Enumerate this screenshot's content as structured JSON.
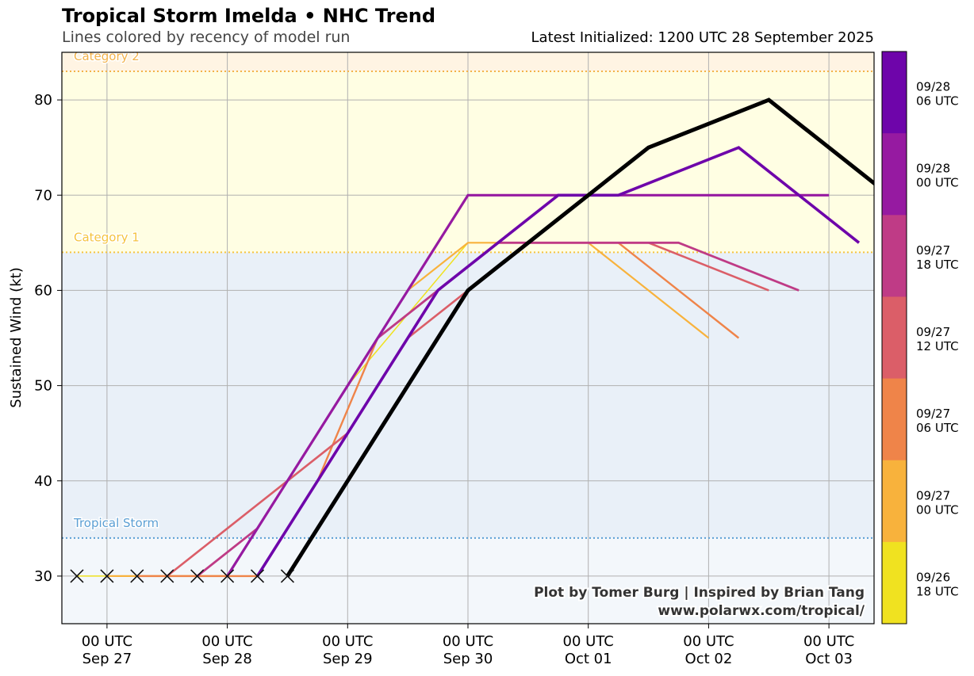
{
  "header": {
    "title": "Tropical Storm Imelda • NHC Trend",
    "subtitle": "Lines colored by recency of model run",
    "initialized": "Latest Initialized: 1200 UTC 28 September 2025"
  },
  "credits": {
    "line1": "Plot by Tomer Burg | Inspired by Brian Tang",
    "line2": "www.polarwx.com/tropical/"
  },
  "chart_data": {
    "type": "line",
    "ylabel": "Sustained Wind (kt)",
    "xlabel": "",
    "ylim": [
      25,
      85
    ],
    "xlim_hours": [
      -9,
      153
    ],
    "x_unit": "hours after 00 UTC Sep 27",
    "grid": true,
    "y_ticks": [
      30,
      40,
      50,
      60,
      70,
      80
    ],
    "x_ticks": [
      {
        "hour": 0,
        "line1": "00 UTC",
        "line2": "Sep 27"
      },
      {
        "hour": 24,
        "line1": "00 UTC",
        "line2": "Sep 28"
      },
      {
        "hour": 48,
        "line1": "00 UTC",
        "line2": "Sep 29"
      },
      {
        "hour": 72,
        "line1": "00 UTC",
        "line2": "Sep 30"
      },
      {
        "hour": 96,
        "line1": "00 UTC",
        "line2": "Oct 01"
      },
      {
        "hour": 120,
        "line1": "00 UTC",
        "line2": "Oct 02"
      },
      {
        "hour": 144,
        "line1": "00 UTC",
        "line2": "Oct 03"
      }
    ],
    "bands": [
      {
        "from": 25,
        "to": 34,
        "color": "#f3f7fb"
      },
      {
        "from": 34,
        "to": 64,
        "color": "#e9f0f8"
      },
      {
        "from": 64,
        "to": 83,
        "color": "#fffee3"
      },
      {
        "from": 83,
        "to": 85,
        "color": "#fff4e3"
      }
    ],
    "thresholds": [
      {
        "value": 34,
        "label": "Tropical Storm",
        "color": "#5b9fd4"
      },
      {
        "value": 64,
        "label": "Category 1",
        "color": "#f5c440"
      },
      {
        "value": 83,
        "label": "Category 2",
        "color": "#f3b24a"
      }
    ],
    "observed_x_markers": [
      {
        "hour": -6,
        "value": 30
      },
      {
        "hour": 0,
        "value": 30
      },
      {
        "hour": 6,
        "value": 30
      },
      {
        "hour": 12,
        "value": 30
      },
      {
        "hour": 18,
        "value": 30
      },
      {
        "hour": 24,
        "value": 30
      },
      {
        "hour": 30,
        "value": 30
      },
      {
        "hour": 36,
        "value": 30
      }
    ],
    "series": [
      {
        "run": "09/26 18 UTC",
        "color": "#f0e220",
        "width": 1.5,
        "points": [
          [
            -6,
            30
          ],
          [
            0,
            30
          ],
          [
            12,
            30
          ],
          [
            24,
            30
          ],
          [
            48,
            50
          ],
          [
            72,
            65
          ],
          [
            84,
            65
          ],
          [
            96,
            65
          ],
          [
            108,
            60
          ]
        ]
      },
      {
        "run": "09/27 00 UTC",
        "color": "#f8b23c",
        "width": 2.2,
        "points": [
          [
            0,
            30
          ],
          [
            12,
            30
          ],
          [
            24,
            30
          ],
          [
            36,
            40
          ],
          [
            48,
            50
          ],
          [
            60,
            60
          ],
          [
            72,
            65
          ],
          [
            84,
            65
          ],
          [
            96,
            65
          ],
          [
            120,
            55
          ]
        ]
      },
      {
        "run": "09/27 06 UTC",
        "color": "#ef8449",
        "width": 2.4,
        "points": [
          [
            6,
            30
          ],
          [
            18,
            30
          ],
          [
            30,
            30
          ],
          [
            42,
            40
          ],
          [
            54,
            55
          ],
          [
            66,
            60
          ],
          [
            78,
            65
          ],
          [
            90,
            65
          ],
          [
            102,
            65
          ],
          [
            114,
            60
          ],
          [
            126,
            55
          ]
        ]
      },
      {
        "run": "09/27 12 UTC",
        "color": "#db5e68",
        "width": 2.6,
        "points": [
          [
            12,
            30
          ],
          [
            24,
            35
          ],
          [
            36,
            40
          ],
          [
            48,
            45
          ],
          [
            60,
            55
          ],
          [
            72,
            60
          ],
          [
            84,
            65
          ],
          [
            96,
            65
          ],
          [
            108,
            65
          ],
          [
            132,
            60
          ]
        ]
      },
      {
        "run": "09/27 18 UTC",
        "color": "#bf3b86",
        "width": 2.8,
        "points": [
          [
            18,
            30
          ],
          [
            30,
            35
          ],
          [
            42,
            45
          ],
          [
            54,
            55
          ],
          [
            66,
            60
          ],
          [
            78,
            65
          ],
          [
            90,
            65
          ],
          [
            102,
            65
          ],
          [
            114,
            65
          ],
          [
            138,
            60
          ]
        ]
      },
      {
        "run": "09/28 00 UTC",
        "color": "#961aa1",
        "width": 3.2,
        "points": [
          [
            24,
            30
          ],
          [
            36,
            40
          ],
          [
            48,
            50
          ],
          [
            72,
            70
          ],
          [
            96,
            70
          ],
          [
            120,
            70
          ],
          [
            144,
            70
          ]
        ]
      },
      {
        "run": "09/28 06 UTC",
        "color": "#6e05aa",
        "width": 3.6,
        "points": [
          [
            30,
            30
          ],
          [
            42,
            40
          ],
          [
            54,
            50
          ],
          [
            66,
            60
          ],
          [
            78,
            65
          ],
          [
            90,
            70
          ],
          [
            102,
            70
          ],
          [
            126,
            75
          ],
          [
            150,
            65
          ]
        ]
      },
      {
        "run": "09/28 12 UTC",
        "color": "#000000",
        "width": 5,
        "points": [
          [
            36,
            30
          ],
          [
            48,
            40
          ],
          [
            72,
            60
          ],
          [
            96,
            70
          ],
          [
            108,
            75
          ],
          [
            132,
            80
          ],
          [
            156,
            70
          ]
        ]
      }
    ],
    "colorbar": [
      {
        "label1": "09/28",
        "label2": "06 UTC",
        "color": "#6e05aa"
      },
      {
        "label1": "09/28",
        "label2": "00 UTC",
        "color": "#961aa1"
      },
      {
        "label1": "09/27",
        "label2": "18 UTC",
        "color": "#bf3b86"
      },
      {
        "label1": "09/27",
        "label2": "12 UTC",
        "color": "#db5e68"
      },
      {
        "label1": "09/27",
        "label2": "06 UTC",
        "color": "#ef8449"
      },
      {
        "label1": "09/27",
        "label2": "00 UTC",
        "color": "#f8b23c"
      },
      {
        "label1": "09/26",
        "label2": "18 UTC",
        "color": "#f0e220"
      }
    ]
  }
}
